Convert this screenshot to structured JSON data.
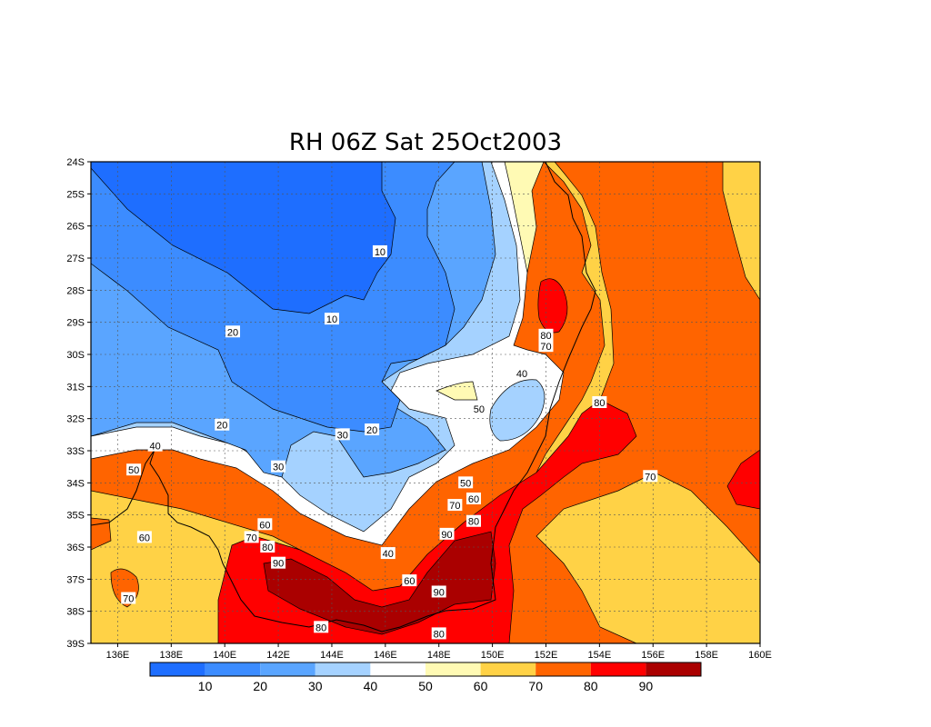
{
  "title": "RH 06Z Sat 25Oct2003",
  "lat_labels": [
    "24S",
    "25S",
    "26S",
    "27S",
    "28S",
    "29S",
    "30S",
    "31S",
    "32S",
    "33S",
    "34S",
    "35S",
    "36S",
    "37S",
    "38S",
    "39S"
  ],
  "lon_labels": [
    "136E",
    "138E",
    "140E",
    "142E",
    "144E",
    "146E",
    "148E",
    "150E",
    "152E",
    "154E",
    "156E",
    "158E",
    "160E"
  ],
  "colorbar": {
    "colors": [
      "#1e6eff",
      "#3c8cff",
      "#5aa5ff",
      "#a5d2ff",
      "#ffffff",
      "#fffab4",
      "#ffd246",
      "#ff6400",
      "#ff0000",
      "#aa0000"
    ],
    "labels": [
      "10",
      "20",
      "30",
      "40",
      "50",
      "60",
      "70",
      "80",
      "90"
    ]
  },
  "contour_labels": [
    {
      "t": "10",
      "lon": 145.8,
      "lat": -26.8
    },
    {
      "t": "10",
      "lon": 144.0,
      "lat": -28.9
    },
    {
      "t": "20",
      "lon": 140.3,
      "lat": -29.3
    },
    {
      "t": "20",
      "lon": 139.9,
      "lat": -32.2
    },
    {
      "t": "20",
      "lon": 145.5,
      "lat": -32.35
    },
    {
      "t": "30",
      "lon": 142.0,
      "lat": -33.5
    },
    {
      "t": "30",
      "lon": 144.4,
      "lat": -32.5
    },
    {
      "t": "40",
      "lon": 137.4,
      "lat": -32.85
    },
    {
      "t": "40",
      "lon": 146.1,
      "lat": -36.2
    },
    {
      "t": "40",
      "lon": 151.1,
      "lat": -30.6
    },
    {
      "t": "50",
      "lon": 136.6,
      "lat": -33.6
    },
    {
      "t": "50",
      "lon": 149.0,
      "lat": -34.0
    },
    {
      "t": "50",
      "lon": 149.5,
      "lat": -31.7
    },
    {
      "t": "60",
      "lon": 141.5,
      "lat": -35.3
    },
    {
      "t": "60",
      "lon": 146.9,
      "lat": -37.05
    },
    {
      "t": "60",
      "lon": 149.3,
      "lat": -34.5
    },
    {
      "t": "60",
      "lon": 137.0,
      "lat": -35.7
    },
    {
      "t": "70",
      "lon": 141.0,
      "lat": -35.7
    },
    {
      "t": "70",
      "lon": 148.6,
      "lat": -34.7
    },
    {
      "t": "70",
      "lon": 152.0,
      "lat": -29.75
    },
    {
      "t": "70",
      "lon": 155.9,
      "lat": -33.8
    },
    {
      "t": "70",
      "lon": 136.4,
      "lat": -37.6
    },
    {
      "t": "80",
      "lon": 141.6,
      "lat": -36.0
    },
    {
      "t": "80",
      "lon": 149.3,
      "lat": -35.2
    },
    {
      "t": "80",
      "lon": 152.0,
      "lat": -29.4
    },
    {
      "t": "80",
      "lon": 154.0,
      "lat": -31.5
    },
    {
      "t": "80",
      "lon": 143.6,
      "lat": -38.5
    },
    {
      "t": "80",
      "lon": 148.0,
      "lat": -38.7
    },
    {
      "t": "90",
      "lon": 142.0,
      "lat": -36.5
    },
    {
      "t": "90",
      "lon": 148.3,
      "lat": -35.6
    },
    {
      "t": "90",
      "lon": 148.0,
      "lat": -37.4
    }
  ]
}
